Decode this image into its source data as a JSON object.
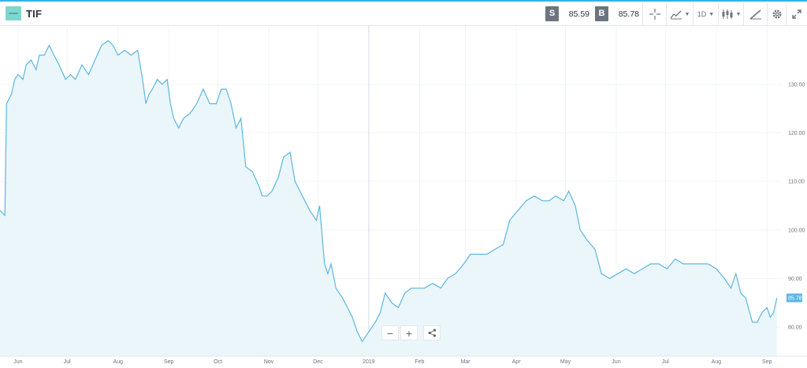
{
  "header": {
    "ticker": "TIF",
    "sell_label": "S",
    "sell_price": "85.59",
    "buy_label": "B",
    "buy_price": "85.78",
    "interval": "1D"
  },
  "icons": [
    "crosshair-icon",
    "line-chart-type-icon",
    "candlestick-icon",
    "draw-icon",
    "gear-icon",
    "expand-icon",
    "minus-icon",
    "plus-icon",
    "share-icon"
  ],
  "zoom": {
    "minus": "−",
    "plus": "+"
  },
  "chart_data": {
    "type": "area",
    "line_color": "#5cb6e0",
    "fill_color": "#eaf6fa",
    "last_value_label": "85.78",
    "x_tick_labels": [
      "Jun",
      "Jul",
      "Aug",
      "Sep",
      "Oct",
      "Nov",
      "Dec",
      "2019",
      "Feb",
      "Mar",
      "Apr",
      "May",
      "Jun",
      "Jul",
      "Aug",
      "Sep"
    ],
    "y_tick_labels": [
      "80.00",
      "90.00",
      "100.00",
      "110.00",
      "120.00",
      "130.00"
    ],
    "y_ticks": [
      80,
      90,
      100,
      110,
      120,
      130
    ],
    "ylim": [
      74,
      142
    ],
    "x_start": "2018-05-21",
    "x_end": "2019-09-10",
    "grid": true,
    "points": [
      [
        "2018-05-21",
        104
      ],
      [
        "2018-05-24",
        103
      ],
      [
        "2018-05-25",
        126
      ],
      [
        "2018-05-28",
        128
      ],
      [
        "2018-05-30",
        131
      ],
      [
        "2018-06-01",
        132
      ],
      [
        "2018-06-04",
        131
      ],
      [
        "2018-06-06",
        134
      ],
      [
        "2018-06-09",
        135
      ],
      [
        "2018-06-12",
        133
      ],
      [
        "2018-06-14",
        136
      ],
      [
        "2018-06-17",
        136
      ],
      [
        "2018-06-20",
        138
      ],
      [
        "2018-06-23",
        136
      ],
      [
        "2018-06-26",
        134
      ],
      [
        "2018-06-30",
        131
      ],
      [
        "2018-07-03",
        132
      ],
      [
        "2018-07-06",
        131
      ],
      [
        "2018-07-10",
        134
      ],
      [
        "2018-07-14",
        132
      ],
      [
        "2018-07-18",
        135
      ],
      [
        "2018-07-22",
        138
      ],
      [
        "2018-07-26",
        139
      ],
      [
        "2018-07-29",
        138
      ],
      [
        "2018-08-01",
        136
      ],
      [
        "2018-08-05",
        137
      ],
      [
        "2018-08-09",
        136
      ],
      [
        "2018-08-13",
        137
      ],
      [
        "2018-08-16",
        131
      ],
      [
        "2018-08-18",
        126
      ],
      [
        "2018-08-20",
        128
      ],
      [
        "2018-08-22",
        129
      ],
      [
        "2018-08-25",
        131
      ],
      [
        "2018-08-28",
        130
      ],
      [
        "2018-08-31",
        131
      ],
      [
        "2018-09-02",
        126
      ],
      [
        "2018-09-04",
        123
      ],
      [
        "2018-09-07",
        121
      ],
      [
        "2018-09-10",
        123
      ],
      [
        "2018-09-14",
        124
      ],
      [
        "2018-09-18",
        126
      ],
      [
        "2018-09-22",
        129
      ],
      [
        "2018-09-26",
        126
      ],
      [
        "2018-09-30",
        126
      ],
      [
        "2018-10-03",
        129
      ],
      [
        "2018-10-06",
        129
      ],
      [
        "2018-10-09",
        126
      ],
      [
        "2018-10-12",
        121
      ],
      [
        "2018-10-15",
        123
      ],
      [
        "2018-10-18",
        113
      ],
      [
        "2018-10-22",
        112
      ],
      [
        "2018-10-26",
        109
      ],
      [
        "2018-10-28",
        107
      ],
      [
        "2018-10-31",
        107
      ],
      [
        "2018-11-03",
        108
      ],
      [
        "2018-11-07",
        111
      ],
      [
        "2018-11-10",
        115
      ],
      [
        "2018-11-14",
        116
      ],
      [
        "2018-11-17",
        110
      ],
      [
        "2018-11-20",
        108
      ],
      [
        "2018-11-23",
        106
      ],
      [
        "2018-11-26",
        104
      ],
      [
        "2018-11-30",
        102
      ],
      [
        "2018-12-02",
        105
      ],
      [
        "2018-12-05",
        93
      ],
      [
        "2018-12-07",
        91
      ],
      [
        "2018-12-09",
        93
      ],
      [
        "2018-12-12",
        88
      ],
      [
        "2018-12-16",
        86
      ],
      [
        "2018-12-19",
        84
      ],
      [
        "2018-12-22",
        82
      ],
      [
        "2018-12-25",
        79
      ],
      [
        "2018-12-28",
        77
      ],
      [
        "2019-01-01",
        79
      ],
      [
        "2019-01-05",
        81
      ],
      [
        "2019-01-08",
        83
      ],
      [
        "2019-01-11",
        87
      ],
      [
        "2019-01-15",
        85
      ],
      [
        "2019-01-19",
        84
      ],
      [
        "2019-01-23",
        87
      ],
      [
        "2019-01-27",
        88
      ],
      [
        "2019-01-31",
        88
      ],
      [
        "2019-02-04",
        88
      ],
      [
        "2019-02-09",
        89
      ],
      [
        "2019-02-14",
        88
      ],
      [
        "2019-02-18",
        90
      ],
      [
        "2019-02-23",
        91
      ],
      [
        "2019-02-28",
        93
      ],
      [
        "2019-03-04",
        95
      ],
      [
        "2019-03-09",
        95
      ],
      [
        "2019-03-14",
        95
      ],
      [
        "2019-03-19",
        96
      ],
      [
        "2019-03-24",
        97
      ],
      [
        "2019-03-28",
        102
      ],
      [
        "2019-04-02",
        104
      ],
      [
        "2019-04-07",
        106
      ],
      [
        "2019-04-12",
        107
      ],
      [
        "2019-04-17",
        106
      ],
      [
        "2019-04-21",
        106
      ],
      [
        "2019-04-25",
        107
      ],
      [
        "2019-04-30",
        106
      ],
      [
        "2019-05-03",
        108
      ],
      [
        "2019-05-07",
        105
      ],
      [
        "2019-05-10",
        100
      ],
      [
        "2019-05-14",
        98
      ],
      [
        "2019-05-19",
        96
      ],
      [
        "2019-05-23",
        91
      ],
      [
        "2019-05-28",
        90
      ],
      [
        "2019-06-02",
        91
      ],
      [
        "2019-06-07",
        92
      ],
      [
        "2019-06-12",
        91
      ],
      [
        "2019-06-17",
        92
      ],
      [
        "2019-06-22",
        93
      ],
      [
        "2019-06-27",
        93
      ],
      [
        "2019-07-02",
        92
      ],
      [
        "2019-07-07",
        94
      ],
      [
        "2019-07-12",
        93
      ],
      [
        "2019-07-17",
        93
      ],
      [
        "2019-07-22",
        93
      ],
      [
        "2019-07-27",
        93
      ],
      [
        "2019-08-01",
        92
      ],
      [
        "2019-08-06",
        90
      ],
      [
        "2019-08-10",
        88
      ],
      [
        "2019-08-13",
        91
      ],
      [
        "2019-08-16",
        87
      ],
      [
        "2019-08-19",
        86
      ],
      [
        "2019-08-23",
        81
      ],
      [
        "2019-08-26",
        81
      ],
      [
        "2019-08-29",
        83
      ],
      [
        "2019-09-01",
        84
      ],
      [
        "2019-09-03",
        82
      ],
      [
        "2019-09-05",
        83
      ],
      [
        "2019-09-07",
        86
      ]
    ]
  }
}
